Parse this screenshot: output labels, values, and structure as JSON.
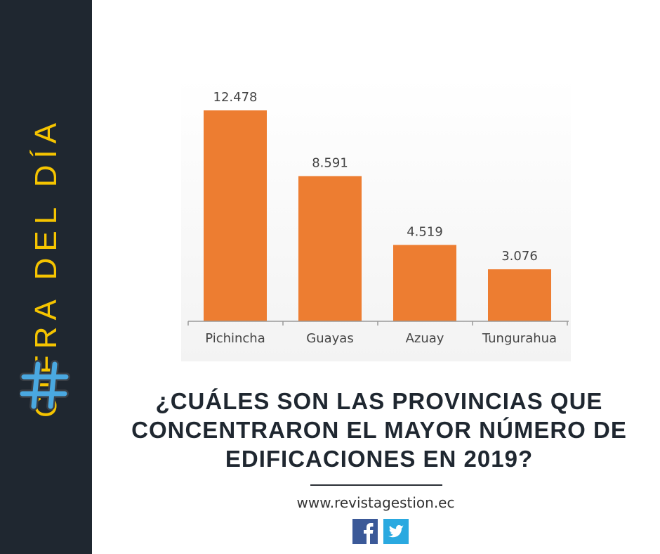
{
  "sidebar": {
    "title": "CIFRA DEL DÍA",
    "hash": "#",
    "colors": {
      "bg": "#1f2730",
      "title": "#f5c400",
      "hash": "#4aa8e0"
    }
  },
  "chart_data": {
    "type": "bar",
    "title": "",
    "xlabel": "",
    "ylabel": "",
    "categories": [
      "Pichincha",
      "Guayas",
      "Azuay",
      "Tungurahua"
    ],
    "values": [
      12478,
      8591,
      4519,
      3076
    ],
    "value_labels": [
      "12.478",
      "8.591",
      "4.519",
      "3.076"
    ],
    "ylim": [
      0,
      12478
    ],
    "grid": false,
    "bar_color": "#ed7d31"
  },
  "question": "¿CUÁLES SON LAS PROVINCIAS QUE CONCENTRARON EL MAYOR NÚMERO DE EDIFICACIONES EN 2019?",
  "footer": {
    "url": "www.revistagestion.ec",
    "facebook_icon": "facebook-icon",
    "twitter_icon": "twitter-icon"
  }
}
